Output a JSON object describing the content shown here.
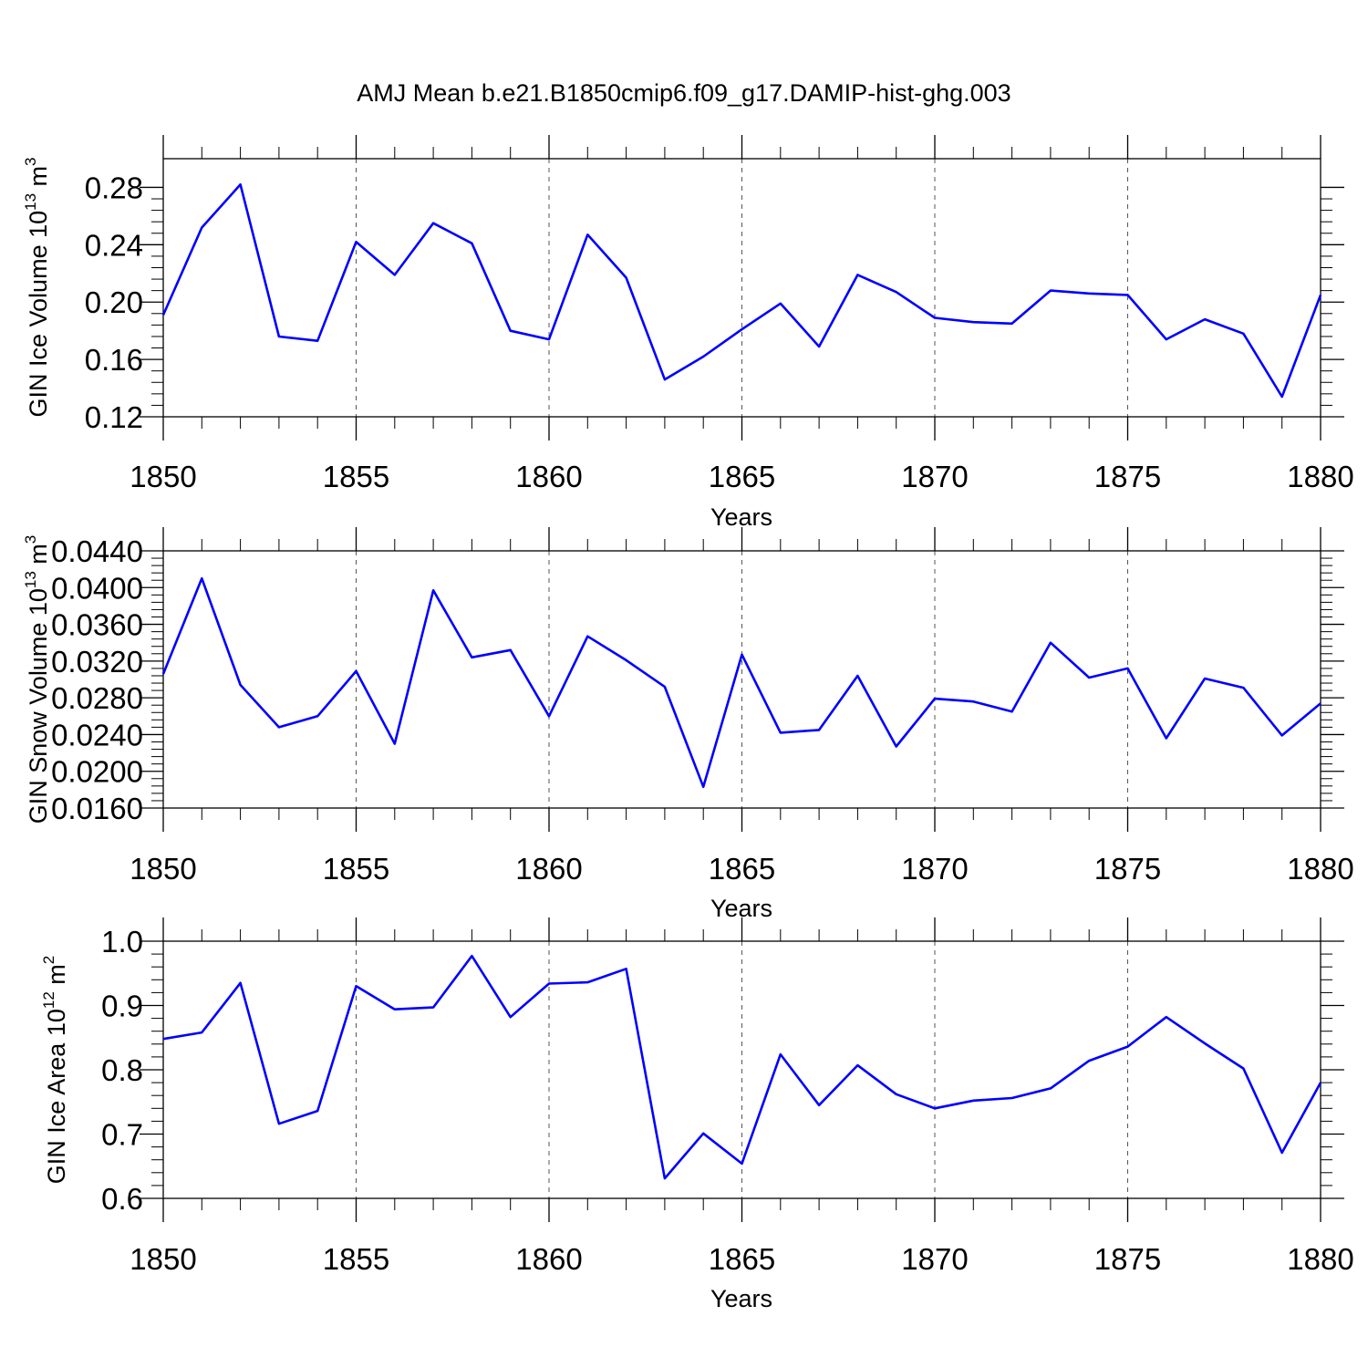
{
  "chart_data": [
    {
      "type": "line",
      "title": "AMJ Mean b.e21.B1850cmip6.f09_g17.DAMIP-hist-ghg.003",
      "xlabel": "Years",
      "ylabel": {
        "prefix": "GIN Ice Volume 10",
        "exp1": "13",
        "mid": " m",
        "exp2": "3"
      },
      "xlim": [
        1850,
        1880
      ],
      "ylim": [
        0.12,
        0.3
      ],
      "yticks": [
        0.12,
        0.16,
        0.2,
        0.24,
        0.28
      ],
      "ytick_labels": [
        "0.12",
        "0.16",
        "0.20",
        "0.24",
        "0.28"
      ],
      "xticks": [
        1850,
        1855,
        1860,
        1865,
        1870,
        1875,
        1880
      ],
      "xtick_labels": [
        "1850",
        "1855",
        "1860",
        "1865",
        "1870",
        "1875",
        "1880"
      ],
      "series": [
        {
          "name": "GIN Ice Volume",
          "color": "#0000ff",
          "x": [
            1850,
            1851,
            1852,
            1853,
            1854,
            1855,
            1856,
            1857,
            1858,
            1859,
            1860,
            1861,
            1862,
            1863,
            1864,
            1865,
            1866,
            1867,
            1868,
            1869,
            1870,
            1871,
            1872,
            1873,
            1874,
            1875,
            1876,
            1877,
            1878,
            1879,
            1880
          ],
          "values": [
            0.191,
            0.252,
            0.282,
            0.176,
            0.173,
            0.242,
            0.219,
            0.255,
            0.241,
            0.18,
            0.174,
            0.247,
            0.217,
            0.146,
            0.162,
            0.181,
            0.199,
            0.169,
            0.219,
            0.207,
            0.189,
            0.186,
            0.185,
            0.208,
            0.206,
            0.205,
            0.174,
            0.188,
            0.178,
            0.134,
            0.205
          ]
        }
      ]
    },
    {
      "type": "line",
      "xlabel": "Years",
      "ylabel": {
        "prefix": "GIN Snow Volume 10",
        "exp1": "13",
        "mid": " m",
        "exp2": "3"
      },
      "xlim": [
        1850,
        1880
      ],
      "ylim": [
        0.016,
        0.044
      ],
      "yticks": [
        0.016,
        0.02,
        0.024,
        0.028,
        0.032,
        0.036,
        0.04,
        0.044
      ],
      "ytick_labels": [
        "0.0160",
        "0.0200",
        "0.0240",
        "0.0280",
        "0.0320",
        "0.0360",
        "0.0400",
        "0.0440"
      ],
      "xticks": [
        1850,
        1855,
        1860,
        1865,
        1870,
        1875,
        1880
      ],
      "xtick_labels": [
        "1850",
        "1855",
        "1860",
        "1865",
        "1870",
        "1875",
        "1880"
      ],
      "series": [
        {
          "name": "GIN Snow Volume",
          "color": "#0000ff",
          "x": [
            1850,
            1851,
            1852,
            1853,
            1854,
            1855,
            1856,
            1857,
            1858,
            1859,
            1860,
            1861,
            1862,
            1863,
            1864,
            1865,
            1866,
            1867,
            1868,
            1869,
            1870,
            1871,
            1872,
            1873,
            1874,
            1875,
            1876,
            1877,
            1878,
            1879,
            1880
          ],
          "values": [
            0.0306,
            0.041,
            0.0294,
            0.0248,
            0.026,
            0.0309,
            0.023,
            0.0397,
            0.0324,
            0.0332,
            0.026,
            0.0347,
            0.0321,
            0.0292,
            0.0183,
            0.0327,
            0.0242,
            0.0245,
            0.0304,
            0.0227,
            0.0279,
            0.0276,
            0.0265,
            0.034,
            0.0302,
            0.0312,
            0.0236,
            0.0301,
            0.0291,
            0.0239,
            0.0274
          ]
        }
      ]
    },
    {
      "type": "line",
      "xlabel": "Years",
      "ylabel": {
        "prefix": "GIN Ice Area 10",
        "exp1": "12",
        "mid": " m",
        "exp2": "2"
      },
      "xlim": [
        1850,
        1880
      ],
      "ylim": [
        0.6,
        1.0
      ],
      "yticks": [
        0.6,
        0.7,
        0.8,
        0.9,
        1.0
      ],
      "ytick_labels": [
        "0.6",
        "0.7",
        "0.8",
        "0.9",
        "1.0"
      ],
      "xticks": [
        1850,
        1855,
        1860,
        1865,
        1870,
        1875,
        1880
      ],
      "xtick_labels": [
        "1850",
        "1855",
        "1860",
        "1865",
        "1870",
        "1875",
        "1880"
      ],
      "series": [
        {
          "name": "GIN Ice Area",
          "color": "#0000ff",
          "x": [
            1850,
            1851,
            1852,
            1853,
            1854,
            1855,
            1856,
            1857,
            1858,
            1859,
            1860,
            1861,
            1862,
            1863,
            1864,
            1865,
            1866,
            1867,
            1868,
            1869,
            1870,
            1871,
            1872,
            1873,
            1874,
            1875,
            1876,
            1877,
            1878,
            1879,
            1880
          ],
          "values": [
            0.848,
            0.858,
            0.935,
            0.716,
            0.736,
            0.93,
            0.894,
            0.897,
            0.977,
            0.882,
            0.934,
            0.936,
            0.957,
            0.631,
            0.701,
            0.654,
            0.824,
            0.745,
            0.807,
            0.762,
            0.74,
            0.752,
            0.756,
            0.771,
            0.814,
            0.836,
            0.882,
            0.841,
            0.802,
            0.671,
            0.78
          ]
        }
      ]
    }
  ]
}
